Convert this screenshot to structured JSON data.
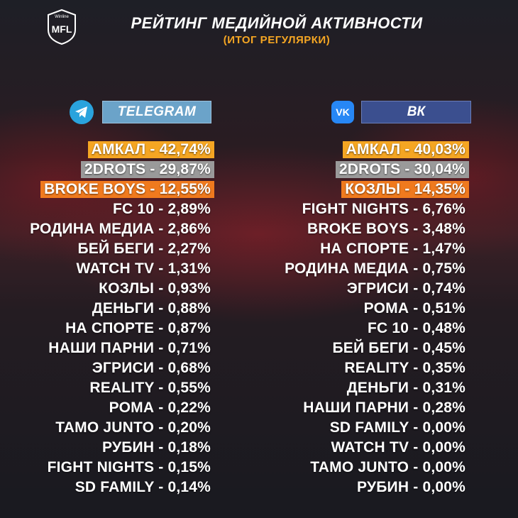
{
  "header": {
    "title": "РЕЙТИНГ МЕДИЙНОЙ АКТИВНОСТИ",
    "subtitle": "(ИТОГ РЕГУЛЯРКИ)",
    "logo_top": "Winline",
    "logo_main": "MFL"
  },
  "colors": {
    "gold": "#f5a623",
    "silver": "#9a9a9a",
    "bronze": "#f07a1e",
    "telegram": "#2aa3dd",
    "vk": "#2787f5"
  },
  "telegram": {
    "label": "TELEGRAM",
    "icon": "telegram-icon",
    "rows": [
      "АМКАЛ - 42,74%",
      "2DROTS - 29,87%",
      "BROKE BOYS - 12,55%",
      "FC 10 - 2,89%",
      "РОДИНА МЕДИА - 2,86%",
      "БЕЙ БЕГИ - 2,27%",
      "WATCH TV - 1,31%",
      "КОЗЛЫ - 0,93%",
      "ДЕНЬГИ - 0,88%",
      "НА СПОРТЕ - 0,87%",
      "НАШИ ПАРНИ - 0,71%",
      "ЭГРИСИ - 0,68%",
      "REALITY - 0,55%",
      "РОМА - 0,22%",
      "TAMO JUNTO - 0,20%",
      "РУБИН - 0,18%",
      "FIGHT NIGHTS - 0,15%",
      "SD FAMILY - 0,14%"
    ]
  },
  "vk": {
    "label": "ВК",
    "icon_text": "VK",
    "icon": "vk-icon",
    "rows": [
      "АМКАЛ - 40,03%",
      "2DROTS - 30,04%",
      "КОЗЛЫ - 14,35%",
      "FIGHT NIGHTS - 6,76%",
      "BROKE BOYS - 3,48%",
      "НА СПОРТЕ - 1,47%",
      "РОДИНА МЕДИА - 0,75%",
      "ЭГРИСИ - 0,74%",
      "РОМА - 0,51%",
      "FC 10 - 0,48%",
      "БЕЙ БЕГИ - 0,45%",
      "REALITY - 0,35%",
      "ДЕНЬГИ - 0,31%",
      "НАШИ ПАРНИ - 0,28%",
      "SD FAMILY - 0,00%",
      "WATCH TV - 0,00%",
      "TAMO JUNTO - 0,00%",
      "РУБИН - 0,00%"
    ]
  }
}
